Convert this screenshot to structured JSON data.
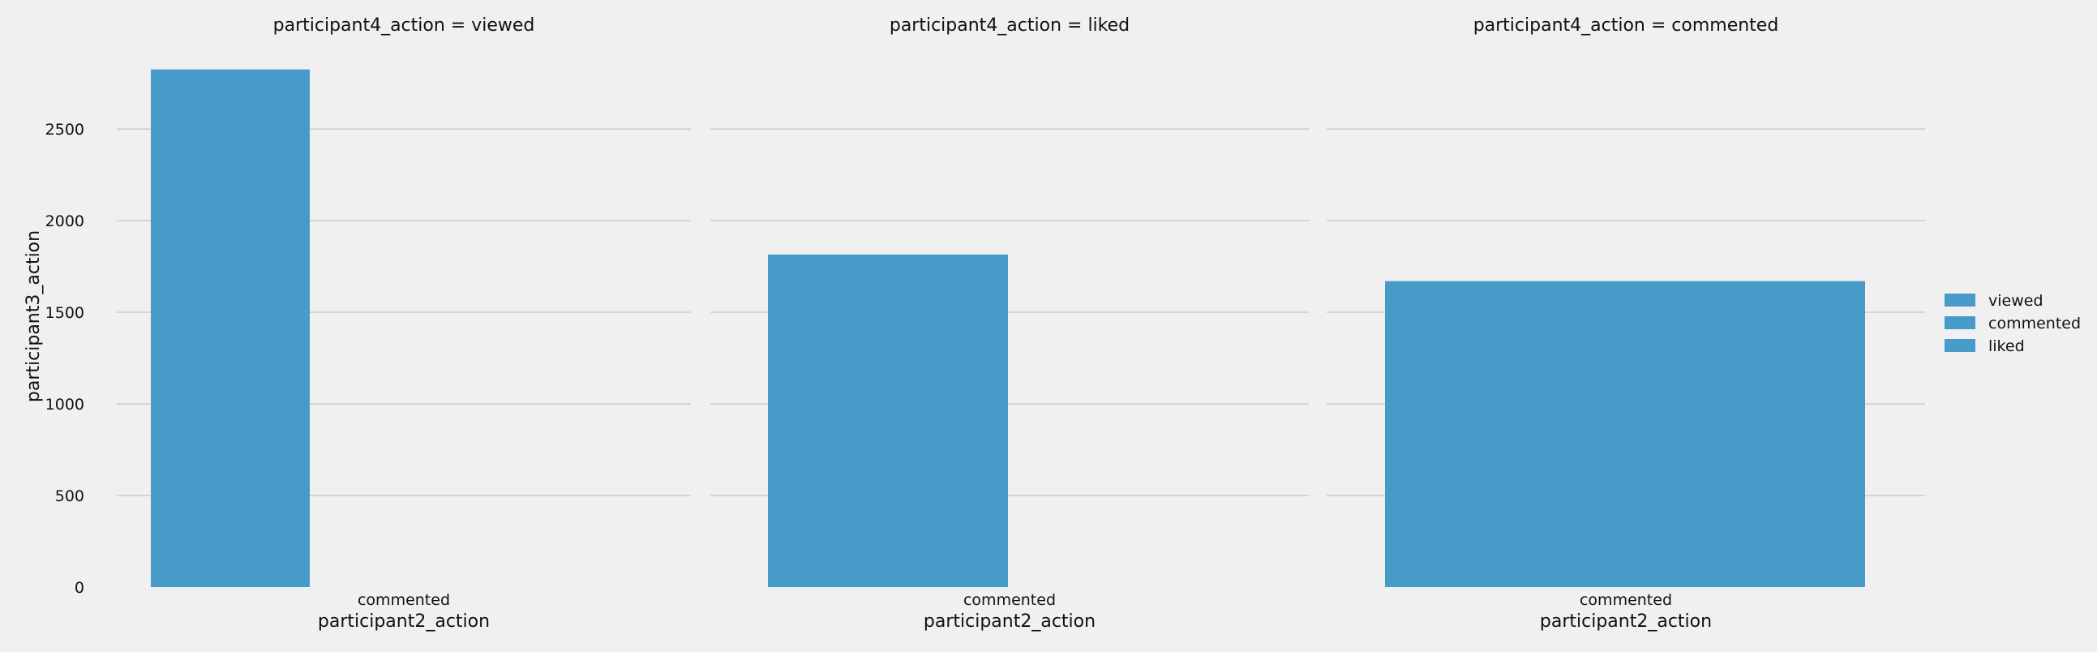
{
  "chart_data": {
    "type": "bar",
    "facet_variable": "participant4_action",
    "xlabel": "participant2_action",
    "ylabel": "participant3_action",
    "ylim": [
      0,
      2850
    ],
    "yticks": [
      0,
      500,
      1000,
      1500,
      2000,
      2500
    ],
    "grid": true,
    "legend_position": "right",
    "bar_color": "#479bc8",
    "legend": [
      "viewed",
      "commented",
      "liked"
    ],
    "panels": [
      {
        "title": "participant4_action = viewed",
        "categories": [
          "commented"
        ],
        "series": [
          {
            "name": "viewed",
            "values": [
              2825
            ]
          },
          {
            "name": "commented",
            "values": [
              null
            ]
          },
          {
            "name": "liked",
            "values": [
              null
            ]
          }
        ]
      },
      {
        "title": "participant4_action = liked",
        "categories": [
          "commented"
        ],
        "series": [
          {
            "name": "viewed",
            "values": [
              1815
            ]
          }
        ]
      },
      {
        "title": "participant4_action = commented",
        "categories": [
          "commented"
        ],
        "series": [
          {
            "name": "viewed",
            "values": [
              1670
            ]
          }
        ]
      }
    ]
  }
}
